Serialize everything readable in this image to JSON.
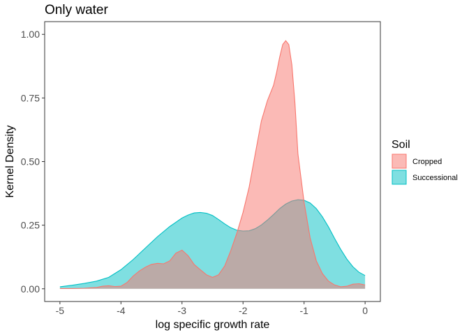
{
  "chart_data": {
    "type": "area",
    "title": "Only water",
    "xlabel": "log specific growth rate",
    "ylabel": "Kernel Density",
    "xlim": [
      -5.25,
      0.25
    ],
    "ylim": [
      -0.05,
      1.05
    ],
    "x_ticks": [
      -5,
      -4,
      -3,
      -2,
      -1,
      0
    ],
    "x_tick_labels": [
      "-5",
      "-4",
      "-3",
      "-2",
      "-1",
      "0"
    ],
    "y_ticks": [
      0,
      0.25,
      0.5,
      0.75,
      1.0
    ],
    "y_tick_labels": [
      "0.00",
      "0.25",
      "0.50",
      "0.75",
      "1.00"
    ],
    "grid": false,
    "legend": {
      "title": "Soil",
      "position": "right"
    },
    "series": [
      {
        "name": "Successional",
        "fill": "#00BFC4",
        "line": "#00BFC4",
        "points": [
          [
            -5.0,
            0.008
          ],
          [
            -4.8,
            0.014
          ],
          [
            -4.6,
            0.021
          ],
          [
            -4.4,
            0.03
          ],
          [
            -4.2,
            0.045
          ],
          [
            -4.0,
            0.075
          ],
          [
            -3.8,
            0.115
          ],
          [
            -3.6,
            0.16
          ],
          [
            -3.4,
            0.205
          ],
          [
            -3.2,
            0.245
          ],
          [
            -3.0,
            0.278
          ],
          [
            -2.9,
            0.29
          ],
          [
            -2.8,
            0.298
          ],
          [
            -2.7,
            0.3
          ],
          [
            -2.6,
            0.297
          ],
          [
            -2.5,
            0.288
          ],
          [
            -2.4,
            0.272
          ],
          [
            -2.3,
            0.255
          ],
          [
            -2.2,
            0.24
          ],
          [
            -2.1,
            0.23
          ],
          [
            -2.0,
            0.227
          ],
          [
            -1.9,
            0.228
          ],
          [
            -1.8,
            0.236
          ],
          [
            -1.7,
            0.251
          ],
          [
            -1.6,
            0.27
          ],
          [
            -1.5,
            0.292
          ],
          [
            -1.4,
            0.315
          ],
          [
            -1.3,
            0.333
          ],
          [
            -1.2,
            0.345
          ],
          [
            -1.1,
            0.35
          ],
          [
            -1.0,
            0.348
          ],
          [
            -0.9,
            0.337
          ],
          [
            -0.8,
            0.315
          ],
          [
            -0.7,
            0.283
          ],
          [
            -0.6,
            0.243
          ],
          [
            -0.5,
            0.198
          ],
          [
            -0.4,
            0.155
          ],
          [
            -0.3,
            0.117
          ],
          [
            -0.2,
            0.087
          ],
          [
            -0.1,
            0.065
          ],
          [
            0.0,
            0.052
          ]
        ]
      },
      {
        "name": "Cropped",
        "fill": "#F8766D",
        "line": "#F8766D",
        "points": [
          [
            -5.0,
            0.001
          ],
          [
            -4.8,
            0.001
          ],
          [
            -4.6,
            0.002
          ],
          [
            -4.4,
            0.005
          ],
          [
            -4.3,
            0.01
          ],
          [
            -4.2,
            0.012
          ],
          [
            -4.1,
            0.009
          ],
          [
            -4.0,
            0.01
          ],
          [
            -3.9,
            0.025
          ],
          [
            -3.8,
            0.05
          ],
          [
            -3.7,
            0.07
          ],
          [
            -3.6,
            0.085
          ],
          [
            -3.5,
            0.096
          ],
          [
            -3.4,
            0.1
          ],
          [
            -3.3,
            0.098
          ],
          [
            -3.2,
            0.11
          ],
          [
            -3.1,
            0.14
          ],
          [
            -3.0,
            0.152
          ],
          [
            -2.9,
            0.13
          ],
          [
            -2.8,
            0.095
          ],
          [
            -2.7,
            0.075
          ],
          [
            -2.6,
            0.055
          ],
          [
            -2.5,
            0.045
          ],
          [
            -2.4,
            0.055
          ],
          [
            -2.3,
            0.09
          ],
          [
            -2.2,
            0.15
          ],
          [
            -2.1,
            0.22
          ],
          [
            -2.0,
            0.3
          ],
          [
            -1.9,
            0.4
          ],
          [
            -1.8,
            0.53
          ],
          [
            -1.7,
            0.66
          ],
          [
            -1.6,
            0.74
          ],
          [
            -1.5,
            0.8
          ],
          [
            -1.45,
            0.85
          ],
          [
            -1.4,
            0.91
          ],
          [
            -1.35,
            0.96
          ],
          [
            -1.3,
            0.975
          ],
          [
            -1.25,
            0.96
          ],
          [
            -1.2,
            0.88
          ],
          [
            -1.15,
            0.73
          ],
          [
            -1.1,
            0.53
          ],
          [
            -1.0,
            0.34
          ],
          [
            -0.9,
            0.2
          ],
          [
            -0.8,
            0.11
          ],
          [
            -0.7,
            0.06
          ],
          [
            -0.6,
            0.03
          ],
          [
            -0.5,
            0.015
          ],
          [
            -0.4,
            0.008
          ],
          [
            -0.3,
            0.01
          ],
          [
            -0.2,
            0.018
          ],
          [
            -0.1,
            0.02
          ],
          [
            0.0,
            0.015
          ]
        ]
      }
    ]
  }
}
